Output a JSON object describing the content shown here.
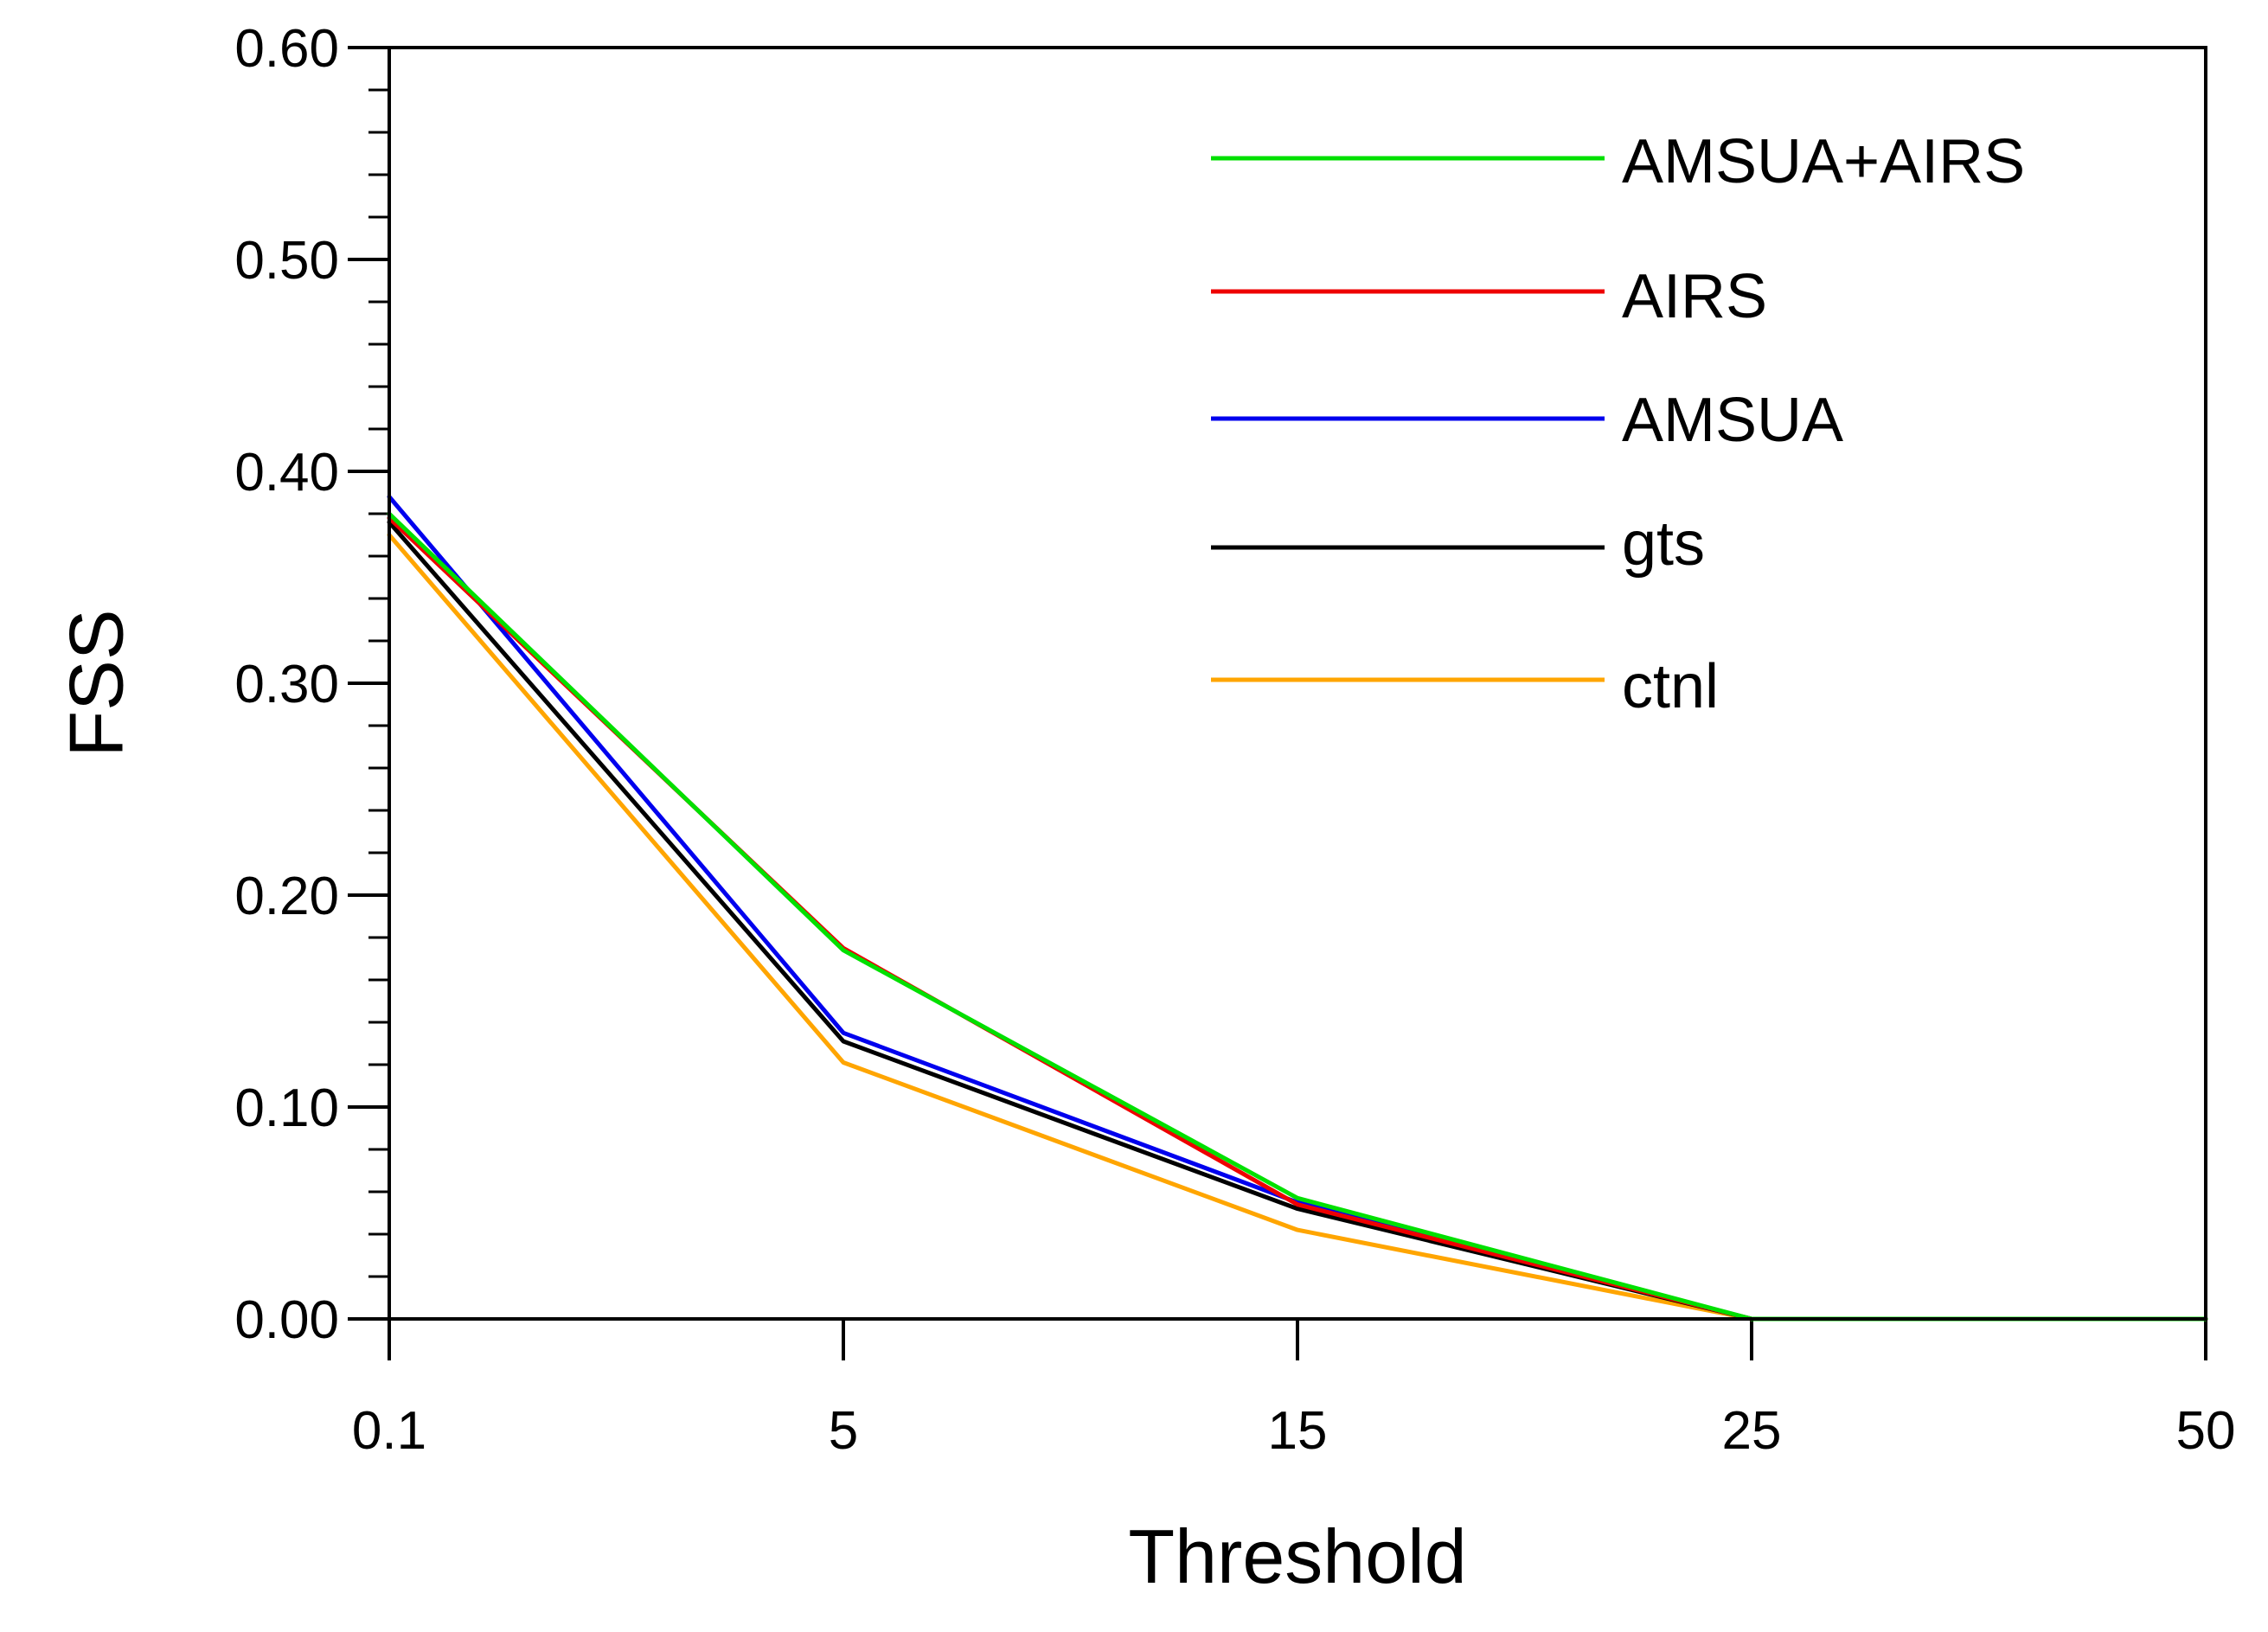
{
  "chart_data": {
    "type": "line",
    "title": "",
    "xlabel": "Threshold",
    "ylabel": "FSS",
    "categories": [
      "0.1",
      "5",
      "15",
      "25",
      "50"
    ],
    "ylim": [
      0,
      0.6
    ],
    "yticks": [
      "0.00",
      "0.10",
      "0.20",
      "0.30",
      "0.40",
      "0.50",
      "0.60"
    ],
    "grid": false,
    "legend_position": "top-right",
    "series": [
      {
        "name": "AMSUA+AIRS",
        "color": "#00e000",
        "values": [
          0.38,
          0.174,
          0.057,
          0.0,
          0.0
        ]
      },
      {
        "name": "AIRS",
        "color": "#ee0000",
        "values": [
          0.378,
          0.175,
          0.054,
          0.0,
          0.0
        ]
      },
      {
        "name": "AMSUA",
        "color": "#0000ee",
        "values": [
          0.388,
          0.135,
          0.055,
          0.0,
          0.0
        ]
      },
      {
        "name": "gts",
        "color": "#000000",
        "values": [
          0.376,
          0.131,
          0.052,
          0.0,
          0.0
        ]
      },
      {
        "name": "ctnl",
        "color": "#ffa500",
        "values": [
          0.37,
          0.121,
          0.042,
          0.0,
          0.0
        ]
      }
    ]
  }
}
